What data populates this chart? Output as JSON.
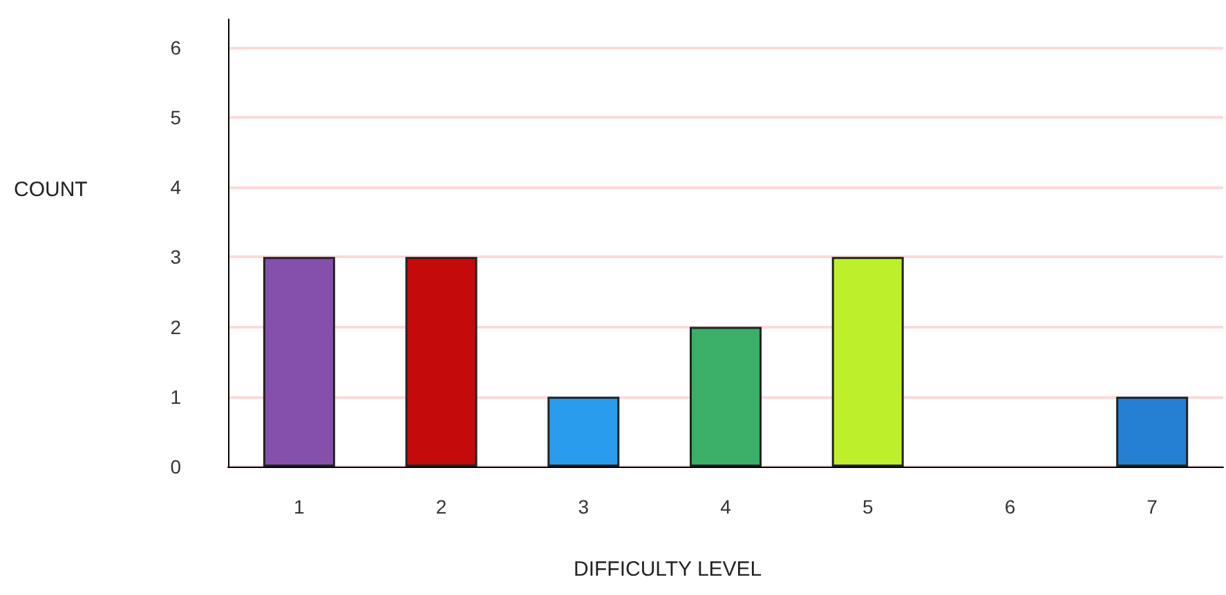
{
  "chart_data": {
    "type": "bar",
    "xlabel": "DIFFICULTY LEVEL",
    "ylabel": "COUNT",
    "categories": [
      "1",
      "2",
      "3",
      "4",
      "5",
      "6",
      "7"
    ],
    "values": [
      3,
      3,
      1,
      2,
      3,
      null,
      1
    ],
    "colors": [
      "#8550ab",
      "#c40a0a",
      "#2a9ced",
      "#3bae68",
      "#bdf02a",
      null,
      "#257fd3"
    ],
    "ylim": [
      0,
      6.4
    ],
    "yticks": [
      0,
      1,
      2,
      3,
      4,
      5,
      6
    ],
    "grid": "y"
  }
}
